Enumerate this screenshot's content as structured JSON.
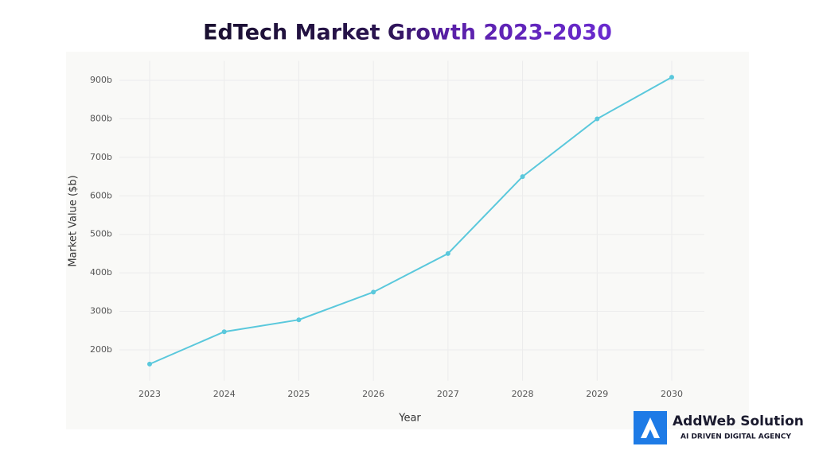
{
  "chart_data": {
    "type": "line",
    "title": "EdTech Market Growth 2023-2030",
    "x_label": "Year",
    "y_label": "Market Value ($b)",
    "categories": [
      "2023",
      "2024",
      "2025",
      "2026",
      "2027",
      "2028",
      "2029",
      "2030"
    ],
    "series": [
      {
        "name": "Market Value",
        "color": "#5ac8dc",
        "values": [
          163,
          247,
          278,
          350,
          450,
          650,
          800,
          908
        ]
      }
    ],
    "ylim": [
      120,
      930
    ],
    "yticks": [
      {
        "value": 200,
        "label": "200b"
      },
      {
        "value": 300,
        "label": "300b"
      },
      {
        "value": 400,
        "label": "400b"
      },
      {
        "value": 500,
        "label": "500b"
      },
      {
        "value": 600,
        "label": "600b"
      },
      {
        "value": 700,
        "label": "700b"
      },
      {
        "value": 800,
        "label": "800b"
      },
      {
        "value": 900,
        "label": "900b"
      }
    ],
    "grid": true
  },
  "logo": {
    "name": "AddWeb Solution",
    "tagline": "AI DRIVEN DIGITAL AGENCY"
  }
}
